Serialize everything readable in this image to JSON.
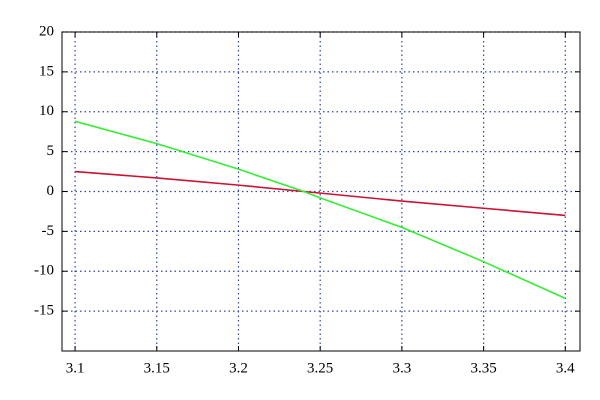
{
  "chart_data": {
    "type": "line",
    "xlim": [
      3.092,
      3.409
    ],
    "xticks": [
      3.1,
      3.15,
      3.2,
      3.25,
      3.3,
      3.35,
      3.4
    ],
    "ylim": [
      -20,
      20
    ],
    "yticks": [
      -15,
      -10,
      -5,
      0,
      5,
      10,
      15,
      20
    ],
    "grid": true,
    "series": [
      {
        "color": "#cc1133",
        "x": [
          3.1,
          3.15,
          3.2,
          3.24,
          3.3,
          3.35,
          3.4
        ],
        "values": [
          2.5,
          1.7,
          0.8,
          0,
          -1.2,
          -2.1,
          -3.0
        ]
      },
      {
        "color": "#33ee33",
        "x": [
          3.1,
          3.15,
          3.2,
          3.24,
          3.25,
          3.3,
          3.35,
          3.4
        ],
        "values": [
          8.8,
          6.0,
          2.8,
          0,
          -0.8,
          -4.5,
          -8.8,
          -13.4
        ]
      }
    ]
  }
}
